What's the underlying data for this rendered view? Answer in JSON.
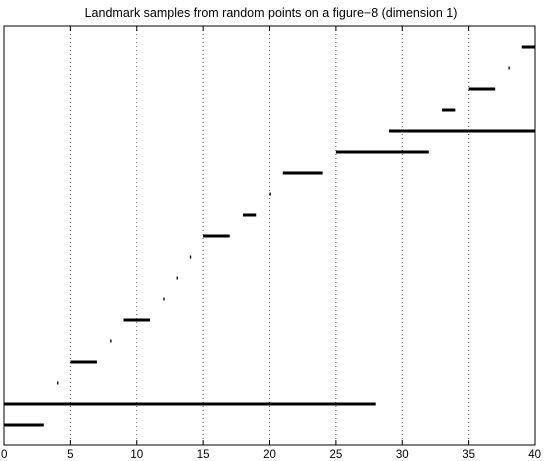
{
  "chart_data": {
    "type": "barcode",
    "title": "Landmark samples from random points on a figure−8 (dimension 1)",
    "xlabel": "",
    "ylabel": "",
    "xlim": [
      0,
      40
    ],
    "x_ticks": [
      0,
      5,
      10,
      15,
      20,
      25,
      30,
      35,
      40
    ],
    "x_tick_labels": [
      "0",
      "5",
      "10",
      "15",
      "20",
      "25",
      "30",
      "35",
      "40"
    ],
    "grid": "vertical-dotted",
    "bar_color": "#000000",
    "intervals": [
      {
        "birth": 0,
        "death": 3
      },
      {
        "birth": 0,
        "death": 28
      },
      {
        "birth": 4,
        "death": 4.1
      },
      {
        "birth": 5,
        "death": 7
      },
      {
        "birth": 8,
        "death": 8.1
      },
      {
        "birth": 9,
        "death": 11
      },
      {
        "birth": 12,
        "death": 12.1
      },
      {
        "birth": 13,
        "death": 13.1
      },
      {
        "birth": 14,
        "death": 14.1
      },
      {
        "birth": 15,
        "death": 17
      },
      {
        "birth": 18,
        "death": 19
      },
      {
        "birth": 20,
        "death": 20.1
      },
      {
        "birth": 21,
        "death": 24
      },
      {
        "birth": 25,
        "death": 32
      },
      {
        "birth": 29,
        "death": 40
      },
      {
        "birth": 33,
        "death": 34
      },
      {
        "birth": 35,
        "death": 37
      },
      {
        "birth": 38,
        "death": 38.1
      },
      {
        "birth": 39,
        "death": 40
      }
    ]
  }
}
